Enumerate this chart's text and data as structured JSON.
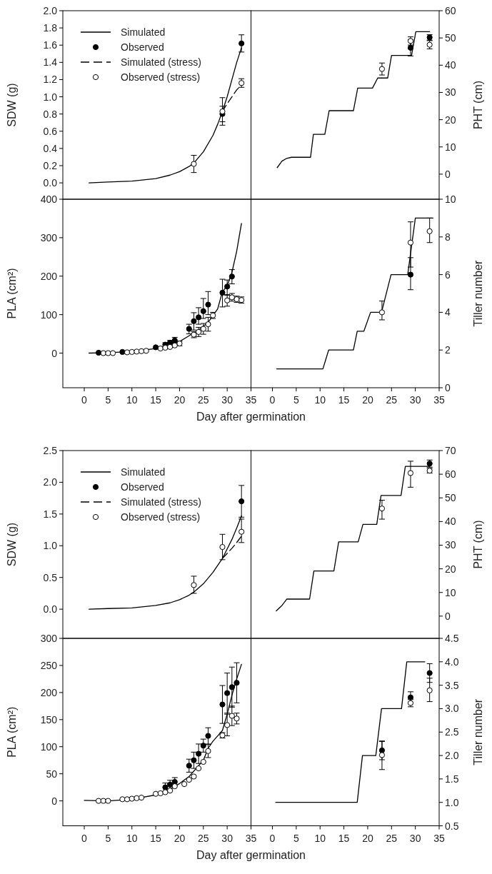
{
  "chart_data": [
    {
      "type": "line",
      "ylabel": "SDW (g)",
      "xlim": [
        -4.5,
        35
      ],
      "ylim": [
        -0.19,
        2.0
      ],
      "yticks": [
        {
          "value": 0,
          "label": "0.0"
        },
        0.2,
        0.4,
        0.6,
        0.8,
        {
          "value": 1,
          "label": "1.0"
        },
        1.2,
        1.4,
        1.6,
        1.8,
        {
          "value": 2,
          "label": "2.0"
        }
      ],
      "tick_labels": "y",
      "legend": "top left",
      "series": [
        {
          "name": "Simulated",
          "color": "#000000",
          "x": [
            1,
            5,
            10,
            15,
            18,
            20,
            22,
            23,
            25,
            27,
            28,
            29,
            30,
            31,
            32,
            33
          ],
          "values": [
            0,
            0.01,
            0.02,
            0.05,
            0.09,
            0.13,
            0.19,
            0.23,
            0.36,
            0.55,
            0.68,
            0.83,
            1.0,
            1.2,
            1.4,
            1.57
          ]
        },
        {
          "name": "Observed",
          "type": "scatter",
          "color": "#000000",
          "x": [
            29,
            33
          ],
          "values": [
            0.8,
            1.62
          ],
          "errors": [
            0.09,
            0.1
          ]
        },
        {
          "name": "Simulated (stress)",
          "line_style": "dashed",
          "color": "#000000",
          "x": [
            29,
            30,
            31,
            32,
            33
          ],
          "values": [
            0.83,
            0.92,
            1.0,
            1.08,
            1.14
          ]
        },
        {
          "name": "Observed (stress)",
          "type": "scatter",
          "color": "#ffffff",
          "x": [
            23,
            29,
            33
          ],
          "values": [
            0.22,
            0.83,
            1.16
          ],
          "errors": [
            0.1,
            0.16,
            0.05
          ]
        }
      ]
    },
    {
      "type": "line",
      "ylabel": "PHT (cm)",
      "xlim": [
        -4.5,
        35
      ],
      "ylim": [
        -9.2,
        60
      ],
      "yticks": [
        0,
        10,
        20,
        30,
        40,
        50,
        60
      ],
      "tick_labels": "y",
      "series": [
        {
          "color": "#000000",
          "x": [
            1,
            2,
            3,
            4,
            8,
            8.6,
            11,
            11.9,
            17,
            17.9,
            21,
            22.1,
            24.2,
            25,
            29.2,
            30.1,
            33
          ],
          "values": [
            2.4,
            4.8,
            5.8,
            6.2,
            6.2,
            14.6,
            14.6,
            23.3,
            23.3,
            31.6,
            31.6,
            35.3,
            35.3,
            43.6,
            43.6,
            52.3,
            52.3
          ]
        },
        {
          "type": "scatter",
          "color": "#000000",
          "x": [
            29,
            33
          ],
          "values": [
            46.4,
            50.2
          ],
          "errors": [
            3,
            1
          ]
        },
        {
          "type": "scatter",
          "color": "#ffffff",
          "x": [
            23,
            29,
            33
          ],
          "values": [
            38.6,
            48.9,
            47.5
          ],
          "errors": [
            2.2,
            1.5,
            1.5
          ]
        }
      ]
    },
    {
      "type": "line",
      "ylabel": "PLA (cm²)",
      "xlim": [
        -4.5,
        35
      ],
      "xticks": [
        0,
        5,
        10,
        15,
        20,
        25,
        30,
        35
      ],
      "ylim": [
        -90,
        400
      ],
      "yticks": [
        0,
        100,
        200,
        300,
        400
      ],
      "xlabel": "Day after germination",
      "series": [
        {
          "color": "#000000",
          "x": [
            1,
            5,
            10,
            15,
            18,
            20,
            22,
            24,
            26,
            28,
            29,
            30,
            31,
            32,
            33
          ],
          "values": [
            0,
            1,
            4,
            12,
            22,
            30,
            45,
            60,
            80,
            115,
            160,
            175,
            210,
            265,
            337
          ]
        },
        {
          "type": "scatter",
          "color": "#000000",
          "x": [
            3,
            8,
            15,
            17,
            18,
            19,
            22,
            23,
            24,
            25,
            26,
            29,
            30,
            31
          ],
          "values": [
            1,
            3,
            15,
            22,
            27,
            33,
            63,
            83,
            93,
            109,
            126,
            157,
            173,
            199
          ],
          "errors": [
            null,
            null,
            null,
            5,
            6,
            8,
            [
              50,
              75
            ],
            [
              60,
              105
            ],
            [
              75,
              118
            ],
            [
              90,
              142
            ],
            [
              100,
              160
            ],
            [
              120,
              192
            ],
            [
              150,
              190
            ],
            [
              180,
              217
            ]
          ]
        },
        {
          "type": "scatter",
          "color": "#ffffff",
          "x": [
            4,
            5,
            6,
            9,
            10,
            11,
            12,
            13,
            16,
            17,
            18,
            19,
            20,
            23,
            24,
            25,
            26,
            27,
            30,
            31,
            32,
            33
          ],
          "values": [
            0,
            0,
            0,
            2,
            3,
            4,
            5,
            6,
            12,
            14,
            16,
            20,
            25,
            48,
            55,
            63,
            75,
            98,
            137,
            145,
            140,
            138
          ],
          "errors": [
            null,
            null,
            null,
            null,
            null,
            null,
            null,
            null,
            null,
            null,
            null,
            null,
            6,
            8,
            12,
            14,
            18,
            8,
            15,
            10,
            8,
            8
          ]
        }
      ]
    },
    {
      "type": "line",
      "ylabel": "Tiller number",
      "xlim": [
        -4.5,
        35
      ],
      "xticks": [
        0,
        5,
        10,
        15,
        20,
        25,
        30,
        35
      ],
      "ylim": [
        0,
        10
      ],
      "yticks": [
        0,
        2,
        4,
        6,
        8,
        10
      ],
      "series": [
        {
          "color": "#000000",
          "x": [
            0.9,
            10.6,
            11.8,
            17,
            17.8,
            19.2,
            20.6,
            22.9,
            24.9,
            28.4,
            30,
            33.7
          ],
          "values": [
            1,
            1,
            2,
            2,
            3,
            3,
            4,
            4,
            6,
            6,
            9,
            9
          ]
        },
        {
          "type": "scatter",
          "color": "#000000",
          "x": [
            29
          ],
          "values": [
            6.0
          ],
          "errors": [
            [
              5.2,
              6.9
            ]
          ]
        },
        {
          "type": "scatter",
          "color": "#ffffff",
          "x": [
            23,
            29,
            33
          ],
          "values": [
            4.0,
            7.7,
            8.3
          ],
          "errors": [
            [
              3.6,
              4.6
            ],
            [
              6.4,
              8.8
            ],
            [
              7.7,
              9.0
            ]
          ]
        }
      ]
    },
    {
      "type": "line",
      "ylabel": "SDW (g)",
      "xlim": [
        -4.5,
        35
      ],
      "ylim": [
        -0.46,
        2.5
      ],
      "yticks": [
        {
          "value": 0,
          "label": "0.0"
        },
        0.5,
        {
          "value": 1,
          "label": "1.0"
        },
        1.5,
        {
          "value": 2,
          "label": "2.0"
        },
        2.5
      ],
      "tick_labels": "y",
      "legend": "top left",
      "series": [
        {
          "name": "Simulated",
          "color": "#000000",
          "x": [
            1,
            5,
            10,
            15,
            18,
            20,
            22,
            23,
            25,
            27,
            29,
            30,
            31,
            32,
            33
          ],
          "values": [
            0,
            0.01,
            0.02,
            0.06,
            0.1,
            0.15,
            0.22,
            0.27,
            0.4,
            0.58,
            0.8,
            0.95,
            1.1,
            1.28,
            1.47
          ]
        },
        {
          "name": "Observed",
          "type": "scatter",
          "color": "#000000",
          "x": [
            33
          ],
          "values": [
            1.7
          ],
          "errors": [
            [
              1.45,
              1.95
            ]
          ]
        },
        {
          "name": "Simulated (stress)",
          "line_style": "dashed",
          "color": "#000000",
          "x": [
            29,
            30,
            31,
            32,
            33
          ],
          "values": [
            0.8,
            0.88,
            0.96,
            1.05,
            1.15
          ]
        },
        {
          "name": "Observed (stress)",
          "type": "scatter",
          "color": "#ffffff",
          "x": [
            23,
            29,
            33
          ],
          "values": [
            0.38,
            0.98,
            1.22
          ],
          "errors": [
            [
              0.25,
              0.52
            ],
            [
              0.78,
              1.18
            ],
            [
              1.05,
              1.42
            ]
          ]
        }
      ]
    },
    {
      "type": "line",
      "ylabel": "PHT (cm)",
      "xlim": [
        -4.5,
        35
      ],
      "ylim": [
        -9.4,
        70
      ],
      "yticks": [
        0,
        10,
        20,
        30,
        40,
        50,
        60,
        70
      ],
      "tick_labels": "y",
      "series": [
        {
          "color": "#000000",
          "x": [
            0.8,
            2,
            3,
            7.8,
            8.7,
            12.9,
            13.9,
            18,
            19,
            21.9,
            22.8,
            27,
            27.9,
            33
          ],
          "values": [
            2.2,
            4.5,
            7.2,
            7.2,
            19.1,
            19.1,
            31.4,
            31.4,
            38.8,
            38.8,
            51,
            51,
            63.3,
            63.3
          ]
        },
        {
          "type": "scatter",
          "color": "#000000",
          "x": [
            33
          ],
          "values": [
            64.5
          ],
          "errors": [
            [
              63,
              66
            ]
          ]
        },
        {
          "type": "scatter",
          "color": "#ffffff",
          "x": [
            23,
            29,
            33
          ],
          "values": [
            45.5,
            60.5,
            61.5
          ],
          "errors": [
            [
              41,
              49
            ],
            [
              54.5,
              65.5
            ],
            1
          ]
        }
      ]
    },
    {
      "type": "line",
      "ylabel": "PLA (cm²)",
      "xlim": [
        -4.5,
        35
      ],
      "xticks": [
        0,
        5,
        10,
        15,
        20,
        25,
        30,
        35
      ],
      "ylim": [
        -46,
        300
      ],
      "yticks": [
        0,
        50,
        100,
        150,
        200,
        250,
        300
      ],
      "xlabel": "Day after germination",
      "series": [
        {
          "color": "#000000",
          "x": [
            0,
            5,
            10,
            15,
            18,
            20,
            22,
            24,
            25,
            26,
            27,
            28,
            29,
            30,
            31,
            32,
            33
          ],
          "values": [
            1,
            0,
            3,
            11,
            22,
            32,
            45,
            65,
            75,
            97,
            110,
            120,
            130,
            160,
            195,
            225,
            252
          ]
        },
        {
          "type": "scatter",
          "color": "#000000",
          "x": [
            17,
            18,
            19,
            22,
            23,
            24,
            25,
            26,
            29,
            30,
            31,
            32
          ],
          "values": [
            25,
            30,
            35,
            65,
            75,
            87,
            102,
            120,
            178,
            199,
            210,
            218
          ],
          "errors": [
            8,
            8,
            8,
            12,
            15,
            18,
            12,
            15,
            35,
            37,
            37,
            37
          ]
        },
        {
          "type": "scatter",
          "color": "#ffffff",
          "x": [
            3,
            4,
            5,
            8,
            9,
            10,
            11,
            12,
            15,
            16,
            17,
            18,
            19,
            21,
            22,
            23,
            24,
            25,
            26,
            29,
            30,
            31,
            32
          ],
          "values": [
            0,
            0,
            0,
            3,
            3,
            4,
            5,
            6,
            13,
            14,
            16,
            19,
            27,
            31,
            39,
            45,
            60,
            72,
            92,
            121,
            140,
            157,
            152
          ],
          "errors": [
            null,
            null,
            null,
            null,
            null,
            null,
            null,
            null,
            null,
            null,
            null,
            null,
            null,
            null,
            null,
            null,
            null,
            null,
            12,
            5,
            20,
            18,
            10
          ]
        }
      ]
    },
    {
      "type": "line",
      "ylabel": "Tiller number",
      "xlim": [
        -4.5,
        35
      ],
      "xticks": [
        0,
        5,
        10,
        15,
        20,
        25,
        30,
        35
      ],
      "ylim": [
        0.5,
        4.5
      ],
      "yticks": [
        0.5,
        {
          "value": 1,
          "label": "1.0"
        },
        1.5,
        {
          "value": 2,
          "label": "2.0"
        },
        2.5,
        {
          "value": 3,
          "label": "3.0"
        },
        3.5,
        {
          "value": 4,
          "label": "4.0"
        },
        4.5
      ],
      "series": [
        {
          "color": "#000000",
          "x": [
            0.7,
            17.8,
            18.9,
            21.7,
            22.9,
            27.1,
            28.2,
            32
          ],
          "values": [
            1,
            1,
            2,
            2,
            3,
            3,
            4,
            4
          ]
        },
        {
          "type": "scatter",
          "color": "#000000",
          "x": [
            23,
            29,
            33
          ],
          "values": [
            2.11,
            3.24,
            3.76
          ],
          "errors": [
            0.2,
            0.12,
            0.2
          ]
        },
        {
          "type": "scatter",
          "color": "#ffffff",
          "x": [
            23,
            29,
            33
          ],
          "values": [
            2.01,
            3.12,
            3.39
          ],
          "errors": [
            [
              1.7,
              2.3
            ],
            0.08,
            [
              3.15,
              3.65
            ]
          ]
        }
      ]
    }
  ]
}
